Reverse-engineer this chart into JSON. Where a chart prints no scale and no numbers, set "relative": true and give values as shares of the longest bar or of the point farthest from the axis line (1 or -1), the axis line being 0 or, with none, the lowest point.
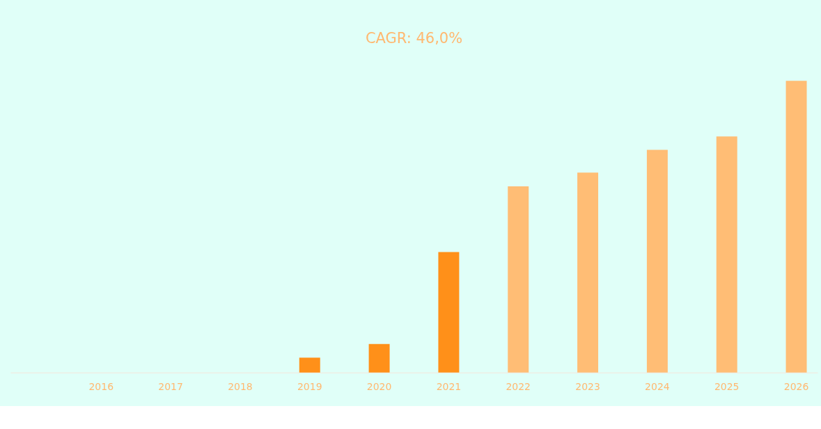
{
  "chart_data": {
    "type": "bar",
    "title": "CAGR: 46,0%",
    "relative": true,
    "categories": [
      null,
      "2016",
      "2017",
      "2018",
      "2019",
      "2020",
      "2021",
      "2022",
      "2023",
      "2024",
      "2025",
      "2026"
    ],
    "values": [
      null,
      0,
      0,
      0,
      0.051,
      0.098,
      0.413,
      0.638,
      0.685,
      0.763,
      0.809,
      1
    ],
    "colors": [
      "#ff9019",
      "#ff9019",
      "#ff9019",
      "#ff9019",
      "#ff9019",
      "#ff9019",
      "#ff9019",
      "#ffbd75",
      "#ffbd75",
      "#ffbd75",
      "#ffbd75",
      "#ffbd75"
    ],
    "grid": false
  }
}
